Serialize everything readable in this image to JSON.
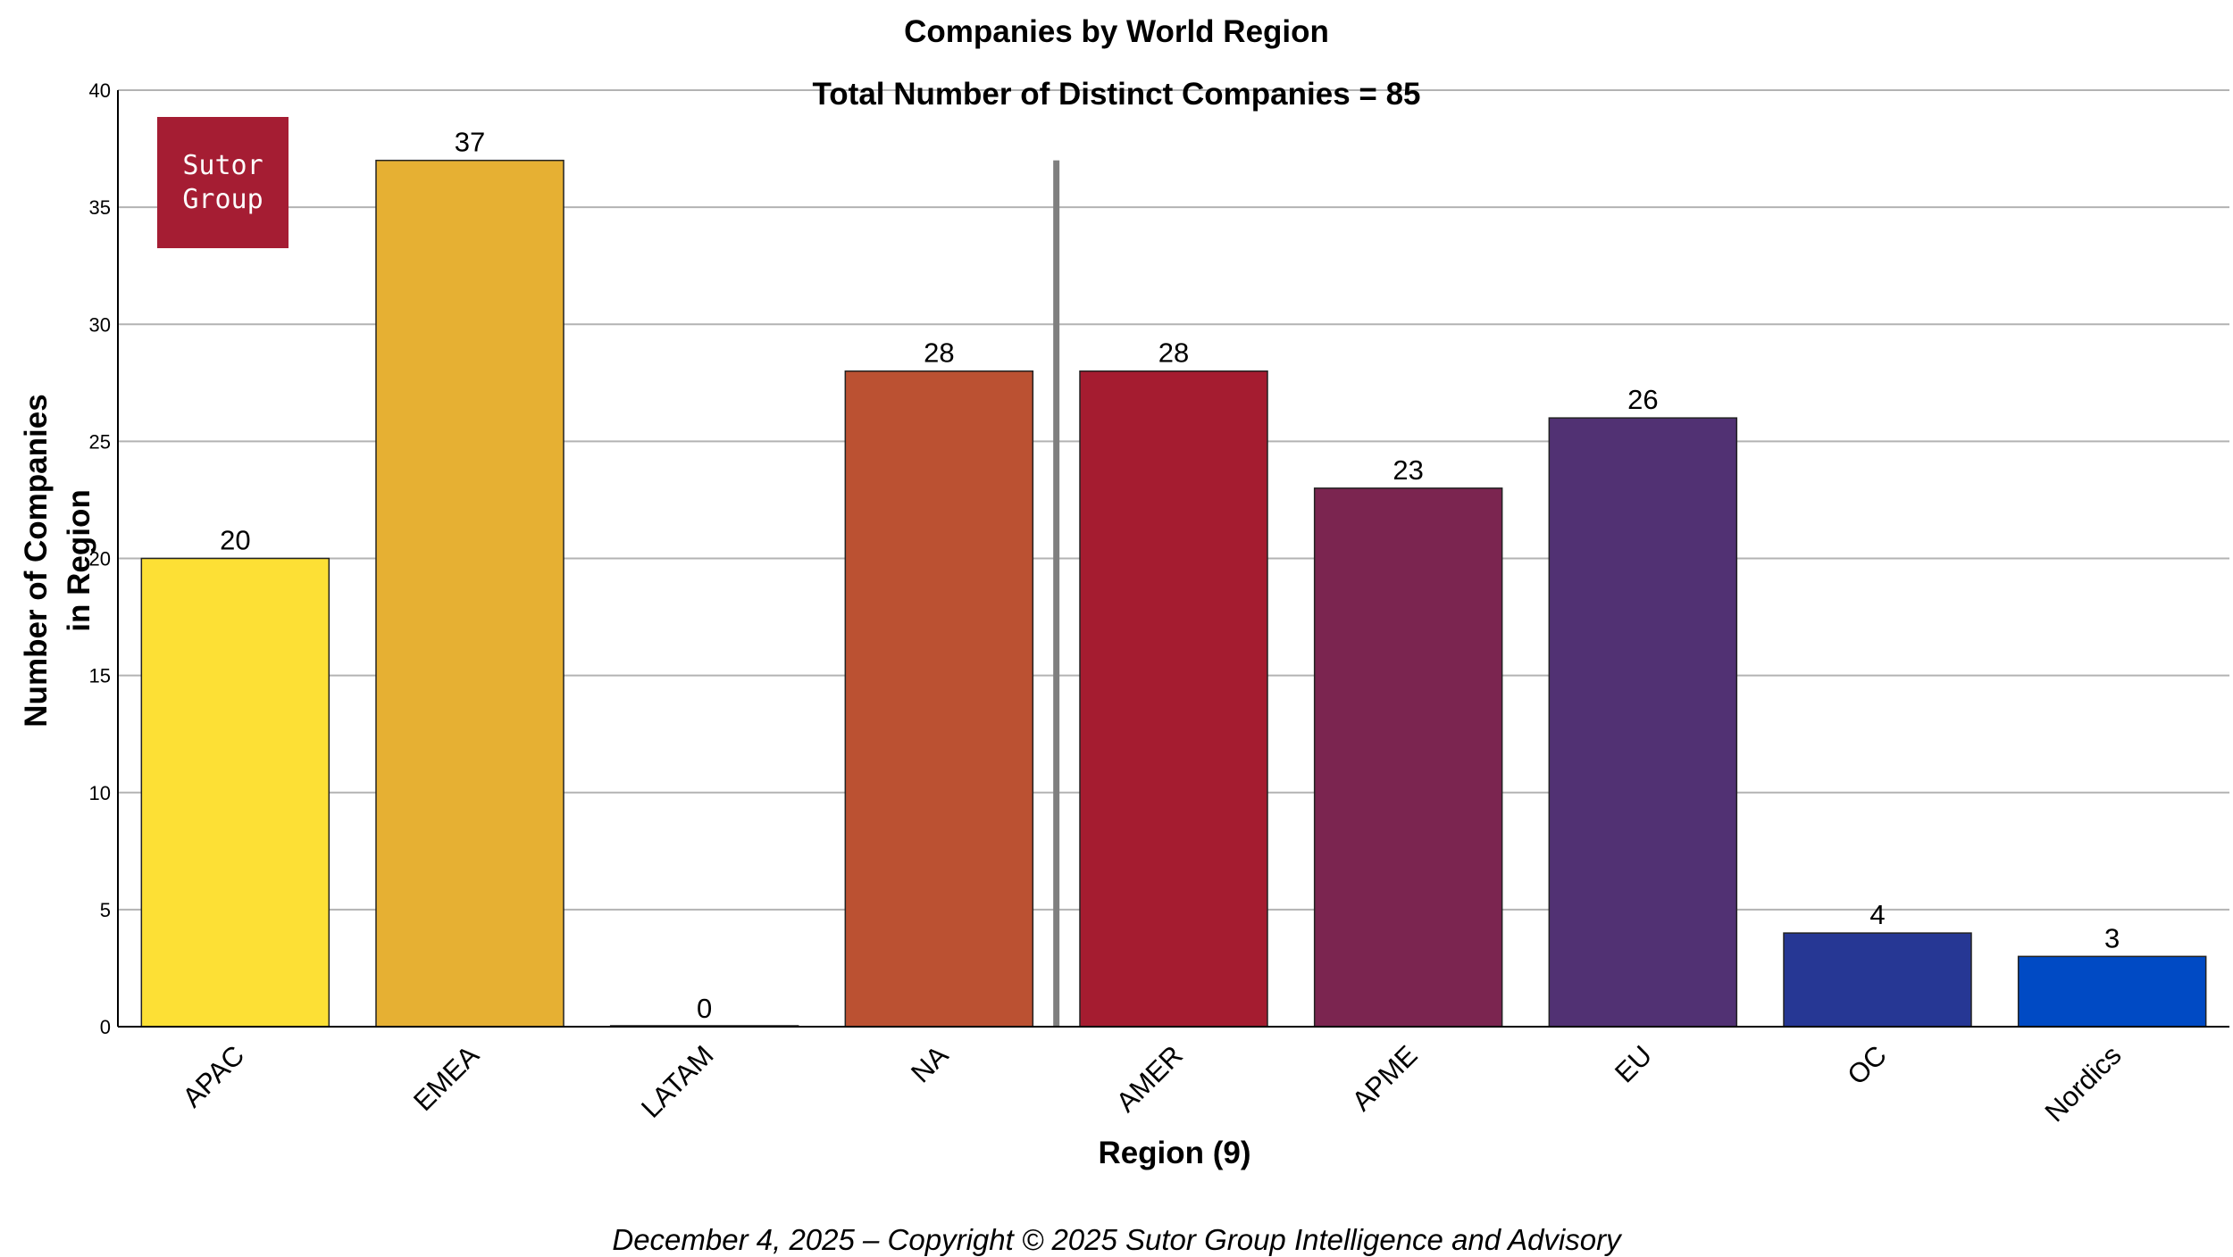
{
  "chart_data": {
    "type": "bar",
    "title": "Companies by World Region",
    "subtitle": "Total Number of Distinct Companies = 85",
    "xlabel": "Region (9)",
    "ylabel": [
      "Number of Companies",
      "in Region"
    ],
    "categories": [
      "APAC",
      "EMEA",
      "LATAM",
      "NA",
      "AMER",
      "APME",
      "EU",
      "OC",
      "Nordics"
    ],
    "values": [
      20,
      37,
      0,
      28,
      28,
      23,
      26,
      4,
      3
    ],
    "colors": [
      "#fde035",
      "#e6b033",
      "#c8a800",
      "#bb5132",
      "#a51c30",
      "#7b2550",
      "#513173",
      "#263794",
      "#004ac4"
    ],
    "ylim": [
      0,
      40
    ],
    "yticks": [
      0,
      5,
      10,
      15,
      20,
      25,
      30,
      35,
      40
    ],
    "grid": "horizontal",
    "divider_after_category": "NA",
    "data_labels": true
  },
  "logo": {
    "line1": "Sutor",
    "line2": "Group"
  },
  "footer": "December 4, 2025 – Copyright © 2025 Sutor Group Intelligence and Advisory"
}
